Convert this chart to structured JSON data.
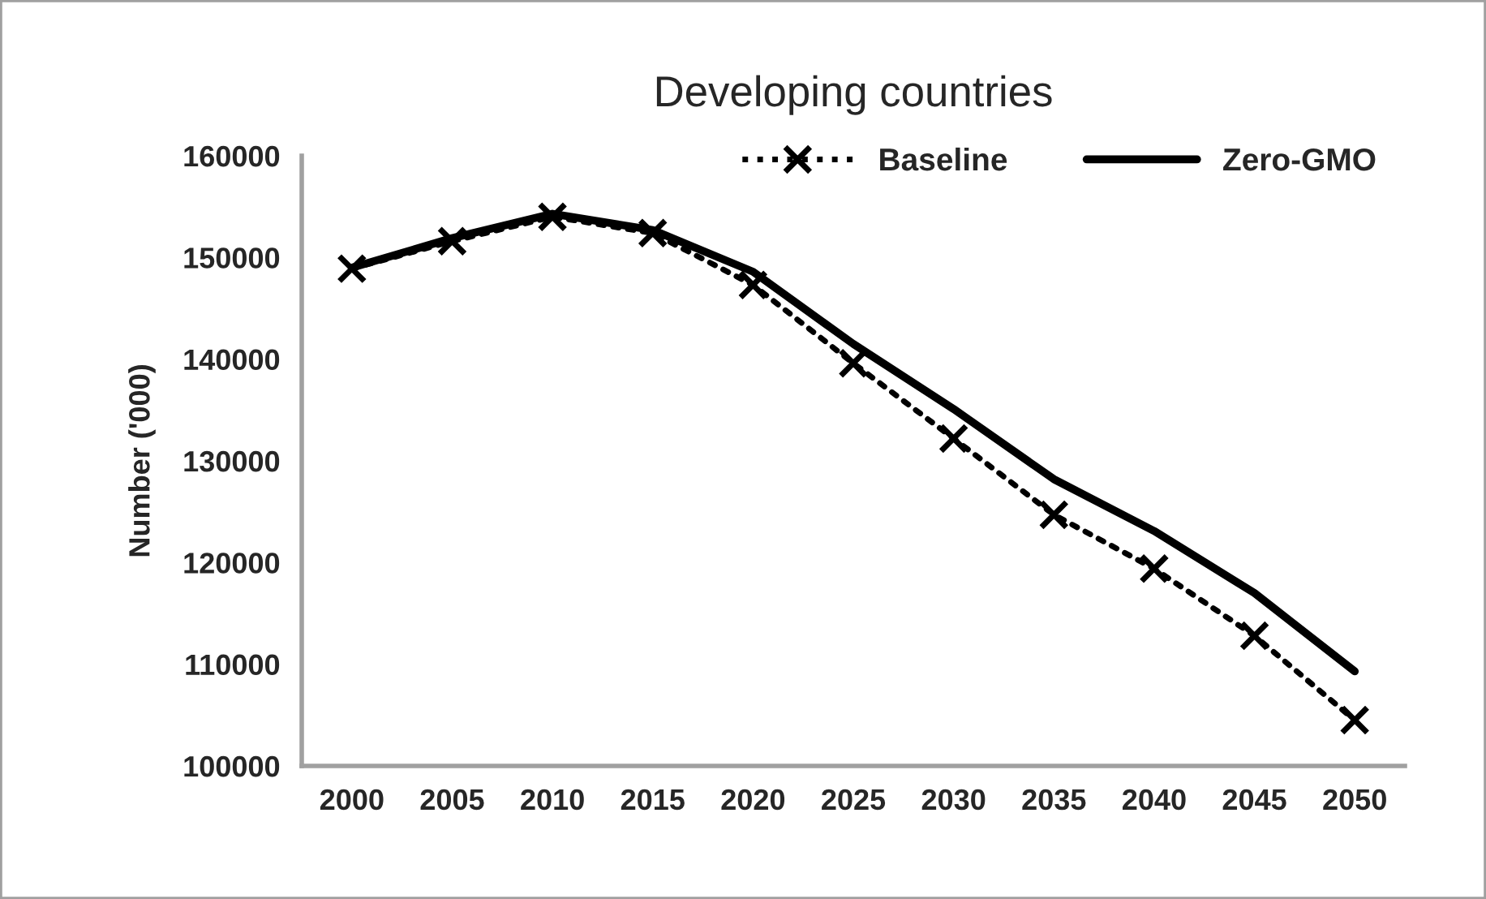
{
  "chart_data": {
    "type": "line",
    "title": "Developing countries",
    "ylabel": "Number ('000)",
    "categories": [
      "2000",
      "2005",
      "2010",
      "2015",
      "2020",
      "2025",
      "2030",
      "2035",
      "2040",
      "2045",
      "2050"
    ],
    "series": [
      {
        "name": "Baseline",
        "color": "#000000",
        "marker": "cross",
        "line_style": "dotted",
        "values": [
          148900,
          151600,
          154000,
          152400,
          147300,
          139600,
          132200,
          124700,
          119400,
          112800,
          104500
        ]
      },
      {
        "name": "Zero-GMO",
        "color": "#000000",
        "marker": "none",
        "line_style": "solid",
        "values": [
          149000,
          151900,
          154300,
          152700,
          148600,
          141500,
          135100,
          128200,
          123100,
          117000,
          109300
        ]
      }
    ],
    "ylim": [
      100000,
      160000
    ],
    "yticks": [
      100000,
      110000,
      120000,
      130000,
      140000,
      150000,
      160000
    ],
    "grid": false,
    "legend": "top right"
  }
}
